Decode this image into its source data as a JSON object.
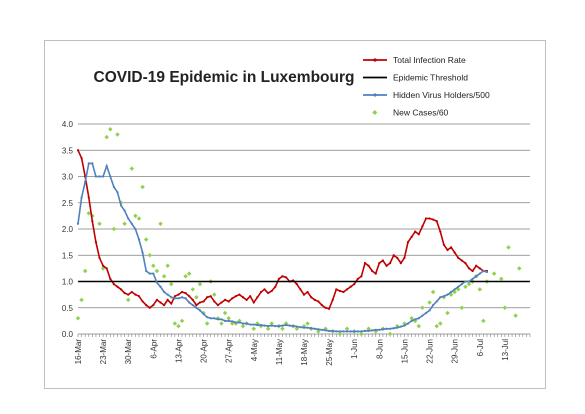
{
  "chart_data": {
    "type": "line",
    "title": "COVID-19 Epidemic in Luxembourg",
    "xlabel": "",
    "ylabel": "",
    "ylim": [
      0,
      4.0
    ],
    "yticks": [
      "0.0",
      "0.5",
      "1.0",
      "1.5",
      "2.0",
      "2.5",
      "3.0",
      "3.5",
      "4.0"
    ],
    "xlim": [
      "2020-03-16",
      "2020-07-20"
    ],
    "xticks": [
      "16-Mar",
      "23-Mar",
      "30-Mar",
      "6-Apr",
      "13-Apr",
      "20-Apr",
      "27-Apr",
      "4-May",
      "11-May",
      "18-May",
      "25-May",
      "1-Jun",
      "8-Jun",
      "15-Jun",
      "22-Jun",
      "29-Jun",
      "6-Jul",
      "13-Jul"
    ],
    "grid": true,
    "legend_position": "top-right",
    "series": [
      {
        "name": "Total Infection Rate",
        "kind": "line",
        "color": "#c00000",
        "x": [
          "2020-03-16",
          "2020-03-17",
          "2020-03-18",
          "2020-03-19",
          "2020-03-20",
          "2020-03-21",
          "2020-03-22",
          "2020-03-23",
          "2020-03-24",
          "2020-03-25",
          "2020-03-26",
          "2020-03-27",
          "2020-03-28",
          "2020-03-29",
          "2020-03-30",
          "2020-03-31",
          "2020-04-01",
          "2020-04-02",
          "2020-04-03",
          "2020-04-04",
          "2020-04-05",
          "2020-04-06",
          "2020-04-07",
          "2020-04-08",
          "2020-04-09",
          "2020-04-10",
          "2020-04-11",
          "2020-04-12",
          "2020-04-13",
          "2020-04-14",
          "2020-04-15",
          "2020-04-16",
          "2020-04-17",
          "2020-04-18",
          "2020-04-19",
          "2020-04-20",
          "2020-04-21",
          "2020-04-22",
          "2020-04-23",
          "2020-04-24",
          "2020-04-25",
          "2020-04-26",
          "2020-04-27",
          "2020-04-28",
          "2020-04-29",
          "2020-04-30",
          "2020-05-01",
          "2020-05-02",
          "2020-05-03",
          "2020-05-04",
          "2020-05-05",
          "2020-05-06",
          "2020-05-07",
          "2020-05-08",
          "2020-05-09",
          "2020-05-10",
          "2020-05-11",
          "2020-05-12",
          "2020-05-13",
          "2020-05-14",
          "2020-05-15",
          "2020-05-16",
          "2020-05-17",
          "2020-05-18",
          "2020-05-19",
          "2020-05-20",
          "2020-05-21",
          "2020-05-22",
          "2020-05-23",
          "2020-05-24",
          "2020-05-25",
          "2020-05-26",
          "2020-05-27",
          "2020-05-28",
          "2020-05-29",
          "2020-05-30",
          "2020-05-31",
          "2020-06-01",
          "2020-06-02",
          "2020-06-03",
          "2020-06-04",
          "2020-06-05",
          "2020-06-06",
          "2020-06-07",
          "2020-06-08",
          "2020-06-09",
          "2020-06-10",
          "2020-06-11",
          "2020-06-12",
          "2020-06-13",
          "2020-06-14",
          "2020-06-15",
          "2020-06-16",
          "2020-06-17",
          "2020-06-18",
          "2020-06-19",
          "2020-06-20",
          "2020-06-21",
          "2020-06-22",
          "2020-06-23",
          "2020-06-24",
          "2020-06-25",
          "2020-06-26",
          "2020-06-27",
          "2020-06-28",
          "2020-06-29",
          "2020-06-30",
          "2020-07-01",
          "2020-07-02",
          "2020-07-03",
          "2020-07-04",
          "2020-07-05",
          "2020-07-06",
          "2020-07-07",
          "2020-07-08"
        ],
        "y": [
          3.5,
          3.35,
          3.0,
          2.6,
          2.15,
          1.75,
          1.45,
          1.3,
          1.25,
          1.05,
          0.95,
          0.9,
          0.85,
          0.78,
          0.75,
          0.8,
          0.75,
          0.72,
          0.62,
          0.55,
          0.5,
          0.55,
          0.65,
          0.6,
          0.55,
          0.65,
          0.58,
          0.72,
          0.75,
          0.8,
          0.78,
          0.72,
          0.65,
          0.55,
          0.6,
          0.62,
          0.7,
          0.72,
          0.62,
          0.55,
          0.6,
          0.65,
          0.62,
          0.68,
          0.72,
          0.75,
          0.7,
          0.65,
          0.72,
          0.6,
          0.7,
          0.8,
          0.85,
          0.78,
          0.82,
          0.9,
          1.05,
          1.1,
          1.08,
          1.0,
          1.02,
          0.95,
          0.85,
          0.75,
          0.8,
          0.7,
          0.65,
          0.62,
          0.55,
          0.5,
          0.48,
          0.65,
          0.85,
          0.82,
          0.8,
          0.85,
          0.9,
          0.95,
          1.05,
          1.1,
          1.35,
          1.3,
          1.2,
          1.15,
          1.35,
          1.4,
          1.3,
          1.35,
          1.5,
          1.45,
          1.35,
          1.45,
          1.75,
          1.85,
          1.95,
          1.9,
          2.05,
          2.2,
          2.2,
          2.18,
          2.15,
          1.95,
          1.7,
          1.6,
          1.65,
          1.55,
          1.45,
          1.4,
          1.35,
          1.25,
          1.2,
          1.3,
          1.25,
          1.2,
          1.2
        ]
      },
      {
        "name": "Epidemic Threshold",
        "kind": "hline",
        "color": "#000000",
        "y": 1.0
      },
      {
        "name": "Hidden Virus Holders/500",
        "kind": "line",
        "color": "#4f81bd",
        "x": [
          "2020-03-16",
          "2020-03-17",
          "2020-03-18",
          "2020-03-19",
          "2020-03-20",
          "2020-03-21",
          "2020-03-22",
          "2020-03-23",
          "2020-03-24",
          "2020-03-25",
          "2020-03-26",
          "2020-03-27",
          "2020-03-28",
          "2020-03-29",
          "2020-03-30",
          "2020-03-31",
          "2020-04-01",
          "2020-04-02",
          "2020-04-03",
          "2020-04-04",
          "2020-04-05",
          "2020-04-06",
          "2020-04-07",
          "2020-04-08",
          "2020-04-09",
          "2020-04-10",
          "2020-04-11",
          "2020-04-12",
          "2020-04-13",
          "2020-04-14",
          "2020-04-15",
          "2020-04-16",
          "2020-04-17",
          "2020-04-18",
          "2020-04-19",
          "2020-04-20",
          "2020-04-21",
          "2020-04-22",
          "2020-04-23",
          "2020-04-24",
          "2020-04-25",
          "2020-04-26",
          "2020-04-27",
          "2020-04-28",
          "2020-04-29",
          "2020-04-30",
          "2020-05-01",
          "2020-05-02",
          "2020-05-03",
          "2020-05-04",
          "2020-05-05",
          "2020-05-06",
          "2020-05-07",
          "2020-05-08",
          "2020-05-09",
          "2020-05-10",
          "2020-05-11",
          "2020-05-12",
          "2020-05-13",
          "2020-05-14",
          "2020-05-15",
          "2020-05-16",
          "2020-05-17",
          "2020-05-18",
          "2020-05-19",
          "2020-05-20",
          "2020-05-21",
          "2020-05-22",
          "2020-05-23",
          "2020-05-24",
          "2020-05-25",
          "2020-05-26",
          "2020-05-27",
          "2020-05-28",
          "2020-05-29",
          "2020-05-30",
          "2020-05-31",
          "2020-06-01",
          "2020-06-02",
          "2020-06-03",
          "2020-06-04",
          "2020-06-05",
          "2020-06-06",
          "2020-06-07",
          "2020-06-08",
          "2020-06-09",
          "2020-06-10",
          "2020-06-11",
          "2020-06-12",
          "2020-06-13",
          "2020-06-14",
          "2020-06-15",
          "2020-06-16",
          "2020-06-17",
          "2020-06-18",
          "2020-06-19",
          "2020-06-20",
          "2020-06-21",
          "2020-06-22",
          "2020-06-23",
          "2020-06-24",
          "2020-06-25",
          "2020-06-26",
          "2020-06-27",
          "2020-06-28",
          "2020-06-29",
          "2020-06-30",
          "2020-07-01",
          "2020-07-02",
          "2020-07-03",
          "2020-07-04",
          "2020-07-05",
          "2020-07-06",
          "2020-07-07",
          "2020-07-08"
        ],
        "y": [
          2.1,
          2.6,
          2.9,
          3.25,
          3.25,
          3.0,
          3.0,
          3.0,
          3.2,
          3.0,
          2.8,
          2.7,
          2.45,
          2.35,
          2.2,
          2.1,
          2.0,
          1.8,
          1.55,
          1.2,
          1.15,
          1.15,
          0.98,
          0.9,
          0.8,
          0.75,
          0.7,
          0.68,
          0.68,
          0.7,
          0.68,
          0.6,
          0.55,
          0.5,
          0.45,
          0.38,
          0.32,
          0.3,
          0.3,
          0.28,
          0.28,
          0.25,
          0.25,
          0.24,
          0.22,
          0.22,
          0.2,
          0.2,
          0.18,
          0.18,
          0.17,
          0.17,
          0.16,
          0.15,
          0.16,
          0.15,
          0.15,
          0.16,
          0.17,
          0.16,
          0.15,
          0.14,
          0.13,
          0.12,
          0.12,
          0.11,
          0.1,
          0.09,
          0.08,
          0.07,
          0.06,
          0.06,
          0.05,
          0.05,
          0.05,
          0.05,
          0.05,
          0.05,
          0.05,
          0.05,
          0.06,
          0.06,
          0.07,
          0.08,
          0.08,
          0.09,
          0.1,
          0.1,
          0.11,
          0.12,
          0.14,
          0.16,
          0.2,
          0.25,
          0.28,
          0.3,
          0.35,
          0.4,
          0.45,
          0.55,
          0.62,
          0.7,
          0.72,
          0.75,
          0.8,
          0.85,
          0.9,
          0.95,
          1.0,
          1.0,
          1.05,
          1.1,
          1.15,
          1.2,
          1.18
        ]
      },
      {
        "name": "New Cases/60",
        "kind": "scatter",
        "color": "#92d050",
        "x": [
          "2020-03-16",
          "2020-03-17",
          "2020-03-18",
          "2020-03-19",
          "2020-03-20",
          "2020-03-22",
          "2020-03-23",
          "2020-03-24",
          "2020-03-25",
          "2020-03-26",
          "2020-03-27",
          "2020-03-28",
          "2020-03-29",
          "2020-03-30",
          "2020-03-31",
          "2020-04-01",
          "2020-04-02",
          "2020-04-03",
          "2020-04-04",
          "2020-04-05",
          "2020-04-06",
          "2020-04-07",
          "2020-04-08",
          "2020-04-09",
          "2020-04-10",
          "2020-04-11",
          "2020-04-12",
          "2020-04-13",
          "2020-04-14",
          "2020-04-15",
          "2020-04-16",
          "2020-04-17",
          "2020-04-18",
          "2020-04-19",
          "2020-04-20",
          "2020-04-21",
          "2020-04-22",
          "2020-04-23",
          "2020-04-24",
          "2020-04-25",
          "2020-04-26",
          "2020-04-27",
          "2020-04-28",
          "2020-04-29",
          "2020-04-30",
          "2020-05-01",
          "2020-05-02",
          "2020-05-04",
          "2020-05-05",
          "2020-05-06",
          "2020-05-08",
          "2020-05-09",
          "2020-05-11",
          "2020-05-12",
          "2020-05-13",
          "2020-05-15",
          "2020-05-16",
          "2020-05-18",
          "2020-05-19",
          "2020-05-20",
          "2020-05-22",
          "2020-05-24",
          "2020-05-26",
          "2020-05-28",
          "2020-05-30",
          "2020-06-01",
          "2020-06-03",
          "2020-06-05",
          "2020-06-07",
          "2020-06-09",
          "2020-06-11",
          "2020-06-13",
          "2020-06-15",
          "2020-06-17",
          "2020-06-18",
          "2020-06-19",
          "2020-06-20",
          "2020-06-22",
          "2020-06-23",
          "2020-06-24",
          "2020-06-25",
          "2020-06-26",
          "2020-06-27",
          "2020-06-28",
          "2020-06-29",
          "2020-06-30",
          "2020-07-01",
          "2020-07-02",
          "2020-07-03",
          "2020-07-04",
          "2020-07-05",
          "2020-07-06",
          "2020-07-07",
          "2020-07-08",
          "2020-07-10",
          "2020-07-12",
          "2020-07-13",
          "2020-07-14",
          "2020-07-16",
          "2020-07-17"
        ],
        "y": [
          0.3,
          0.65,
          1.2,
          2.3,
          2.25,
          2.1,
          1.25,
          3.75,
          3.9,
          2.0,
          3.8,
          2.5,
          2.1,
          0.65,
          3.15,
          2.25,
          2.2,
          2.8,
          1.8,
          1.5,
          1.3,
          1.2,
          2.1,
          1.1,
          1.3,
          0.95,
          0.2,
          0.15,
          0.25,
          1.1,
          1.15,
          0.85,
          0.7,
          0.95,
          0.4,
          0.2,
          1.0,
          0.75,
          0.3,
          0.2,
          0.4,
          0.3,
          0.2,
          0.2,
          0.25,
          0.15,
          0.2,
          0.1,
          0.2,
          0.15,
          0.1,
          0.2,
          0.15,
          0.1,
          0.2,
          0.15,
          0.1,
          0.15,
          0.2,
          0.1,
          0.05,
          0.1,
          0.05,
          0.0,
          0.1,
          0.05,
          0.0,
          0.1,
          0.05,
          0.1,
          0.0,
          0.15,
          0.2,
          0.3,
          0.25,
          0.15,
          0.5,
          0.6,
          0.8,
          0.15,
          0.2,
          0.7,
          0.4,
          0.75,
          0.8,
          0.85,
          0.5,
          0.9,
          0.95,
          1.0,
          1.1,
          0.85,
          0.25,
          1.0,
          1.15,
          1.05,
          0.5,
          1.65,
          0.35,
          1.25
        ]
      }
    ]
  }
}
